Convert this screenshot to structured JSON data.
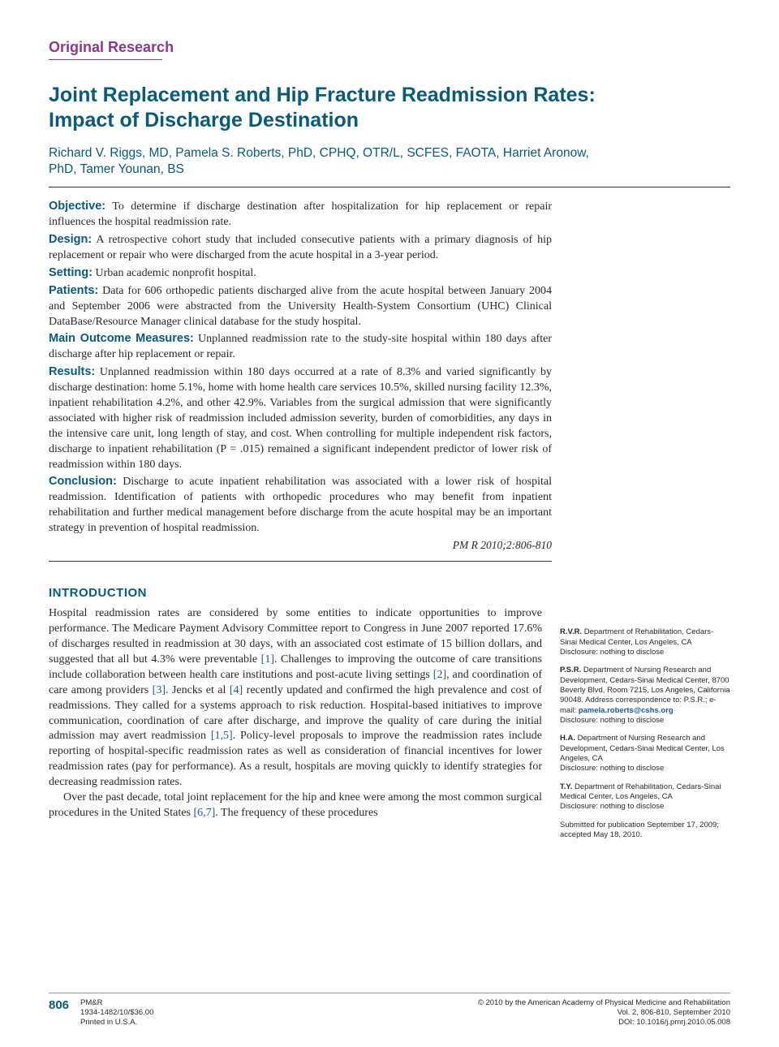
{
  "colors": {
    "accent_purple": "#8b3a8b",
    "accent_teal": "#0a5a7a",
    "link_blue": "#1a5aa8",
    "text": "#2a2a2a",
    "background": "#ffffff",
    "rule_gray": "#999999"
  },
  "typography": {
    "body_font": "Georgia serif",
    "heading_font": "Arial sans-serif",
    "title_size_pt": 19,
    "authors_size_pt": 12,
    "abstract_size_pt": 10.5,
    "body_size_pt": 10.5,
    "sidebar_size_pt": 7,
    "footer_size_pt": 7
  },
  "section_label": "Original Research",
  "title": "Joint Replacement and Hip Fracture Readmission Rates: Impact of Discharge Destination",
  "authors": "Richard V. Riggs, MD, Pamela S. Roberts, PhD, CPHQ, OTR/L, SCFES, FAOTA, Harriet Aronow, PhD, Tamer Younan, BS",
  "abstract": {
    "objective": {
      "label": "Objective:",
      "text": "To determine if discharge destination after hospitalization for hip replacement or repair influences the hospital readmission rate."
    },
    "design": {
      "label": "Design:",
      "text": "A retrospective cohort study that included consecutive patients with a primary diagnosis of hip replacement or repair who were discharged from the acute hospital in a 3-year period."
    },
    "setting": {
      "label": "Setting:",
      "text": "Urban academic nonprofit hospital."
    },
    "patients": {
      "label": "Patients:",
      "text": "Data for 606 orthopedic patients discharged alive from the acute hospital between January 2004 and September 2006 were abstracted from the University Health-System Consortium (UHC) Clinical DataBase/Resource Manager clinical database for the study hospital."
    },
    "outcome": {
      "label": "Main Outcome Measures:",
      "text": "Unplanned readmission rate to the study-site hospital within 180 days after discharge after hip replacement or repair."
    },
    "results": {
      "label": "Results:",
      "text": "Unplanned readmission within 180 days occurred at a rate of 8.3% and varied significantly by discharge destination: home 5.1%, home with home health care services 10.5%, skilled nursing facility 12.3%, inpatient rehabilitation 4.2%, and other 42.9%. Variables from the surgical admission that were significantly associated with higher risk of readmission included admission severity, burden of comorbidities, any days in the intensive care unit, long length of stay, and cost. When controlling for multiple independent risk factors, discharge to inpatient rehabilitation (P = .015) remained a significant independent predictor of lower risk of readmission within 180 days."
    },
    "conclusion": {
      "label": "Conclusion:",
      "text": "Discharge to acute inpatient rehabilitation was associated with a lower risk of hospital readmission. Identification of patients with orthopedic procedures who may benefit from inpatient rehabilitation and further medical management before discharge from the acute hospital may be an important strategy in prevention of hospital readmission."
    }
  },
  "citation_short": "PM R 2010;2:806-810",
  "intro": {
    "heading": "INTRODUCTION",
    "para1_a": "Hospital readmission rates are considered by some entities to indicate opportunities to improve performance. The Medicare Payment Advisory Committee report to Congress in June 2007 reported 17.6% of discharges resulted in readmission at 30 days, with an associated cost estimate of 15 billion dollars, and suggested that all but 4.3% were preventable ",
    "ref1": "[1]",
    "para1_b": ". Challenges to improving the outcome of care transitions include collaboration between health care institutions and post-acute living settings ",
    "ref2": "[2]",
    "para1_c": ", and coordination of care among providers ",
    "ref3": "[3]",
    "para1_d": ". Jencks et al ",
    "ref4": "[4]",
    "para1_e": " recently updated and confirmed the high prevalence and cost of readmissions. They called for a systems approach to risk reduction. Hospital-based initiatives to improve communication, coordination of care after discharge, and improve the quality of care during the initial admission may avert readmission ",
    "ref15": "[1,5]",
    "para1_f": ". Policy-level proposals to improve the readmission rates include reporting of hospital-specific readmission rates as well as consideration of financial incentives for lower readmission rates (pay for performance). As a result, hospitals are moving quickly to identify strategies for decreasing readmission rates.",
    "para2_a": "Over the past decade, total joint replacement for the hip and knee were among the most common surgical procedures in the United States ",
    "ref67": "[6,7]",
    "para2_b": ". The frequency of these procedures"
  },
  "affiliations": [
    {
      "initials": "R.V.R.",
      "text": "Department of Rehabilitation, Cedars-Sinai Medical Center, Los Angeles, CA",
      "disclosure": "Disclosure: nothing to disclose"
    },
    {
      "initials": "P.S.R.",
      "text": "Department of Nursing Research and Development, Cedars-Sinai Medical Center, 8700 Beverly Blvd, Room 7215, Los Angeles, California 90048. Address correspondence to: P.S.R.; e-mail: ",
      "email": "pamela.roberts@cshs.org",
      "disclosure": "Disclosure: nothing to disclose"
    },
    {
      "initials": "H.A.",
      "text": "Department of Nursing Research and Development, Cedars-Sinai Medical Center, Los Angeles, CA",
      "disclosure": "Disclosure: nothing to disclose"
    },
    {
      "initials": "T.Y.",
      "text": "Department of Rehabilitation, Cedars-Sinai Medical Center, Los Angeles, CA",
      "disclosure": "Disclosure: nothing to disclose"
    }
  ],
  "submitted": "Submitted for publication September 17, 2009; accepted May 18, 2010.",
  "footer": {
    "page": "806",
    "journal": "PM&R",
    "issn": "1934-1482/10/$36.00",
    "printed": "Printed in U.S.A.",
    "copyright": "© 2010 by the American Academy of Physical Medicine and Rehabilitation",
    "vol": "Vol. 2, 806-810, September 2010",
    "doi": "DOI: 10.1016/j.pmrj.2010.05.008"
  }
}
